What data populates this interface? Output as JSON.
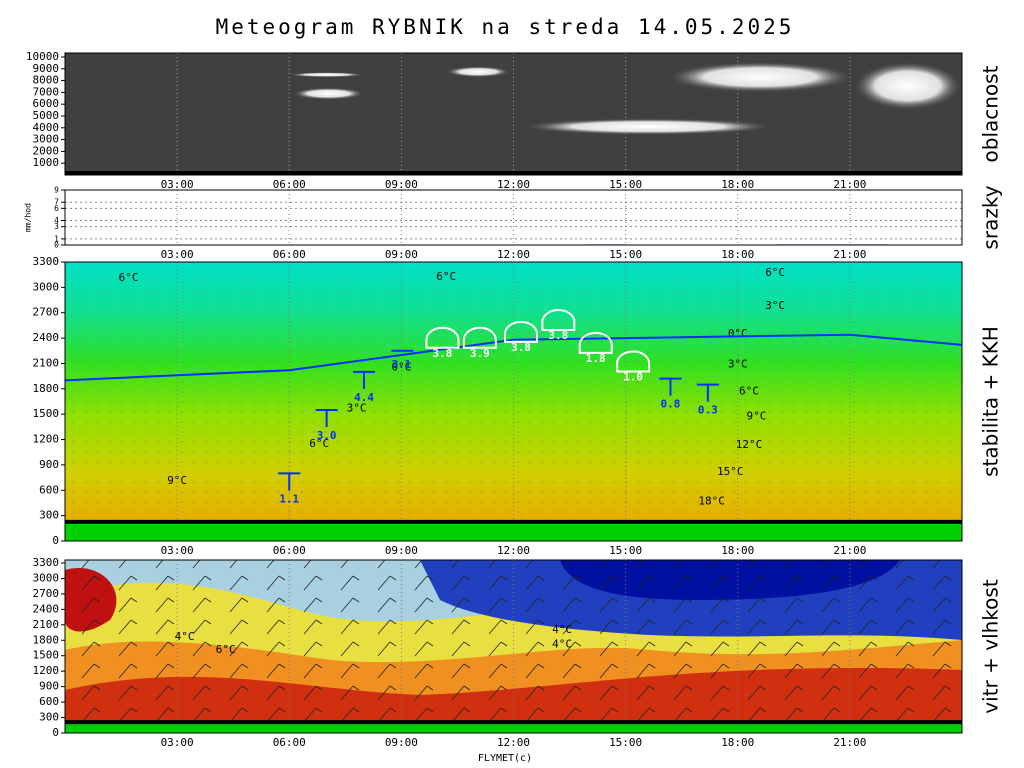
{
  "title": "Meteogram RYBNIK na streda 14.05.2025",
  "chart_data": [
    {
      "type": "cloud",
      "ylabel": "oblacnost",
      "xlim": [
        0,
        24
      ],
      "xticks": [
        {
          "value": 3,
          "label": "03:00"
        },
        {
          "value": 6,
          "label": "06:00"
        },
        {
          "value": 9,
          "label": "09:00"
        },
        {
          "value": 12,
          "label": "12:00"
        },
        {
          "value": 15,
          "label": "15:00"
        },
        {
          "value": 18,
          "label": "18:00"
        },
        {
          "value": 21,
          "label": "21:00"
        }
      ],
      "ylim": [
        0,
        10000
      ],
      "yticks": [
        1000,
        2000,
        3000,
        4000,
        5000,
        6000,
        7000,
        8000,
        9000,
        10000
      ],
      "layers": [
        {
          "x": [
            6.0,
            8.0
          ],
          "y": [
            8300,
            8700
          ]
        },
        {
          "x": [
            6.1,
            8.0
          ],
          "y": [
            6400,
            7400
          ]
        },
        {
          "x": [
            10.2,
            11.9
          ],
          "y": [
            8300,
            9200
          ]
        },
        {
          "x": [
            12.2,
            19.0
          ],
          "y": [
            3400,
            4800
          ]
        },
        {
          "x": [
            16.1,
            21.1
          ],
          "y": [
            7000,
            9600
          ]
        },
        {
          "x": [
            21.1,
            24.0
          ],
          "y": [
            5500,
            9600
          ]
        }
      ]
    },
    {
      "type": "bar",
      "ylabel": "srazky",
      "yaxis_label": "mm/hod",
      "xlim": [
        0,
        24
      ],
      "xticks": [
        {
          "value": 3,
          "label": "03:00"
        },
        {
          "value": 6,
          "label": "06:00"
        },
        {
          "value": 9,
          "label": "09:00"
        },
        {
          "value": 12,
          "label": "12:00"
        },
        {
          "value": 15,
          "label": "15:00"
        },
        {
          "value": 18,
          "label": "18:00"
        },
        {
          "value": 21,
          "label": "21:00"
        }
      ],
      "ylim": [
        0,
        9
      ],
      "yticks": [
        0,
        1,
        3,
        4,
        6,
        7,
        9
      ],
      "x": [
        14.5,
        19.5,
        20.5,
        21.5
      ],
      "values": [
        0.1,
        0.1,
        0.1,
        0.1
      ],
      "color": "#0000ff"
    },
    {
      "type": "contour",
      "ylabel": "stabilita + KKH",
      "xlim": [
        0,
        24
      ],
      "xticks": [
        {
          "value": 3,
          "label": "03:00"
        },
        {
          "value": 6,
          "label": "06:00"
        },
        {
          "value": 9,
          "label": "09:00"
        },
        {
          "value": 12,
          "label": "12:00"
        },
        {
          "value": 15,
          "label": "15:00"
        },
        {
          "value": 18,
          "label": "18:00"
        },
        {
          "value": 21,
          "label": "21:00"
        }
      ],
      "ylim": [
        0,
        3300
      ],
      "yticks": [
        0,
        300,
        600,
        900,
        1200,
        1500,
        1800,
        2100,
        2400,
        2700,
        3000,
        3300
      ],
      "terrain": 250,
      "line": {
        "x": [
          0,
          3,
          6,
          9,
          12,
          15,
          18,
          21,
          24
        ],
        "values": [
          1900,
          1960,
          2020,
          2200,
          2380,
          2400,
          2420,
          2440,
          2320
        ],
        "color": "#0030ff"
      },
      "markers": {
        "x": [
          6.0,
          7.0,
          8.0,
          9.0,
          10.1,
          11.1,
          12.2,
          13.2,
          14.2,
          15.2,
          16.2,
          17.2
        ],
        "y": [
          800,
          1550,
          2000,
          2250,
          2380,
          2380,
          2450,
          2590,
          2320,
          2100,
          1920,
          1850
        ],
        "values": [
          1.1,
          3.0,
          4.4,
          3.1,
          3.8,
          3.9,
          3.8,
          3.8,
          1.8,
          1.0,
          0.8,
          0.3
        ],
        "value_labels": [
          "1.1",
          "3.0",
          "4.4",
          "3.1",
          "3.8",
          "3.9",
          "3.8",
          "3.8",
          "1.8",
          "1.0",
          "0.8",
          "0.3"
        ],
        "kind": [
          "T",
          "T",
          "T",
          "line",
          "dome",
          "dome",
          "dome",
          "dome",
          "dome",
          "dome",
          "T",
          "T"
        ]
      },
      "isotherms": [
        {
          "text": "6°C",
          "x": 1.7,
          "y": 3110
        },
        {
          "text": "6°C",
          "x": 10.2,
          "y": 3120
        },
        {
          "text": "6°C",
          "x": 19.0,
          "y": 3170
        },
        {
          "text": "3°C",
          "x": 19.0,
          "y": 2780
        },
        {
          "text": "0°C",
          "x": 18.0,
          "y": 2450
        },
        {
          "text": "3°C",
          "x": 18.0,
          "y": 2090
        },
        {
          "text": "6°C",
          "x": 18.3,
          "y": 1770
        },
        {
          "text": "9°C",
          "x": 18.5,
          "y": 1470
        },
        {
          "text": "12°C",
          "x": 18.3,
          "y": 1135
        },
        {
          "text": "15°C",
          "x": 17.8,
          "y": 815
        },
        {
          "text": "18°C",
          "x": 17.3,
          "y": 470
        },
        {
          "text": "9°C",
          "x": 3.0,
          "y": 710
        },
        {
          "text": "0°C",
          "x": 9.0,
          "y": 2050
        },
        {
          "text": "3°C",
          "x": 7.8,
          "y": 1570
        },
        {
          "text": "6°C",
          "x": 6.8,
          "y": 1150
        }
      ]
    },
    {
      "type": "contour",
      "ylabel": "vitr + vlhkost",
      "xlabel": "FLYMET(c)",
      "xlim": [
        0,
        24
      ],
      "xticks": [
        {
          "value": 3,
          "label": "03:00"
        },
        {
          "value": 6,
          "label": "06:00"
        },
        {
          "value": 9,
          "label": "09:00"
        },
        {
          "value": 12,
          "label": "12:00"
        },
        {
          "value": 15,
          "label": "15:00"
        },
        {
          "value": 18,
          "label": "18:00"
        },
        {
          "value": 21,
          "label": "21:00"
        }
      ],
      "ylim": [
        0,
        3300
      ],
      "yticks": [
        0,
        300,
        600,
        900,
        1200,
        1500,
        1800,
        2100,
        2400,
        2700,
        3000,
        3300
      ],
      "terrain": 250,
      "isotherms": [
        {
          "text": "4°C",
          "x": 3.2,
          "y": 1860
        },
        {
          "text": "6°C",
          "x": 4.3,
          "y": 1610
        },
        {
          "text": "4°C",
          "x": 13.3,
          "y": 2000
        },
        {
          "text": "4°C",
          "x": 13.3,
          "y": 1720
        }
      ]
    }
  ]
}
